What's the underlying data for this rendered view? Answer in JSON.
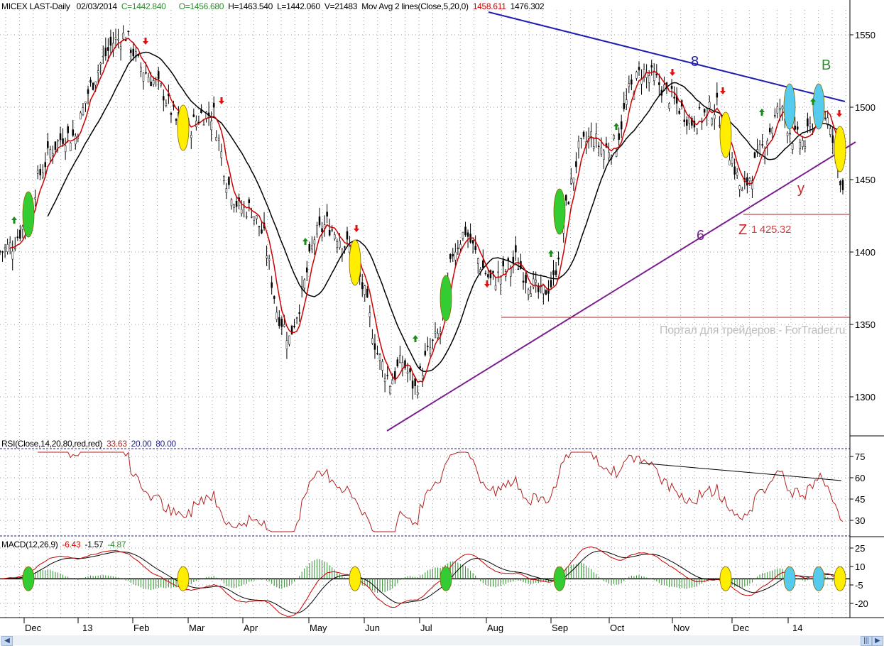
{
  "header": {
    "symbol": "MICEX LAST-Daily",
    "date": "02/03/2014",
    "close": "C=1442.840",
    "open": "O=1456.680",
    "high": "H=1463.540",
    "low": "L=1442.060",
    "volume": "V=21483",
    "ma_label": "Mov Avg 2 lines(Close,5,20,0)",
    "ma1": "1458.611",
    "ma2": "1476.302"
  },
  "rsi_header": {
    "label": "RSI(Close,14,20,80,red,red)",
    "value": "33.63",
    "low": "20.00",
    "high": "80.00"
  },
  "macd_header": {
    "label": "MACD(12,26,9)",
    "macd": "-6.43",
    "signal": "-1.57",
    "hist": "-4.87"
  },
  "annotations": {
    "wave8": "8",
    "waveB": "B",
    "waveY": "y",
    "waveZ": "Z",
    "z_price": "1 425.32",
    "wave6": "6",
    "watermark": "Портал для трейдеров - ForTrader.ru"
  },
  "colors": {
    "ma5": "#cc0000",
    "ma20": "#000000",
    "upper_trend": "#1f1fb0",
    "lower_trend": "#7a1f8f",
    "rsi": "#b22222",
    "histogram": "#2e8b2e"
  },
  "chart_data": [
    {
      "type": "line",
      "title": "MICEX LAST-Daily",
      "ylim": [
        1270,
        1575
      ],
      "y_ticks": [
        "1550",
        "1500",
        "1450",
        "1400",
        "1350",
        "1300"
      ],
      "x_ticks": [
        "Dec",
        "13",
        "Feb",
        "Mar",
        "Apr",
        "May",
        "Jun",
        "Jul",
        "Aug",
        "Sep",
        "Oct",
        "Nov",
        "Dec",
        "14"
      ],
      "weekly_close": [
        1400,
        1405,
        1420,
        1450,
        1470,
        1480,
        1480,
        1510,
        1530,
        1545,
        1550,
        1530,
        1520,
        1510,
        1490,
        1485,
        1495,
        1495,
        1450,
        1430,
        1430,
        1410,
        1360,
        1340,
        1370,
        1410,
        1420,
        1410,
        1400,
        1370,
        1330,
        1310,
        1325,
        1305,
        1330,
        1345,
        1400,
        1415,
        1395,
        1380,
        1385,
        1395,
        1380,
        1370,
        1380,
        1430,
        1470,
        1480,
        1470,
        1475,
        1510,
        1525,
        1520,
        1510,
        1500,
        1490,
        1495,
        1500,
        1470,
        1440,
        1460,
        1480,
        1500,
        1480,
        1475,
        1500,
        1490,
        1443
      ],
      "series": [
        {
          "name": "Mov Avg 5"
        },
        {
          "name": "Mov Avg 20"
        }
      ]
    },
    {
      "type": "line",
      "title": "RSI(Close,14,20,80,red,red)",
      "y_ticks": [
        "75",
        "60",
        "45",
        "30"
      ]
    },
    {
      "type": "bar",
      "title": "MACD(12,26,9)",
      "y_ticks": [
        "25",
        "10",
        "-5",
        "-20"
      ]
    }
  ]
}
